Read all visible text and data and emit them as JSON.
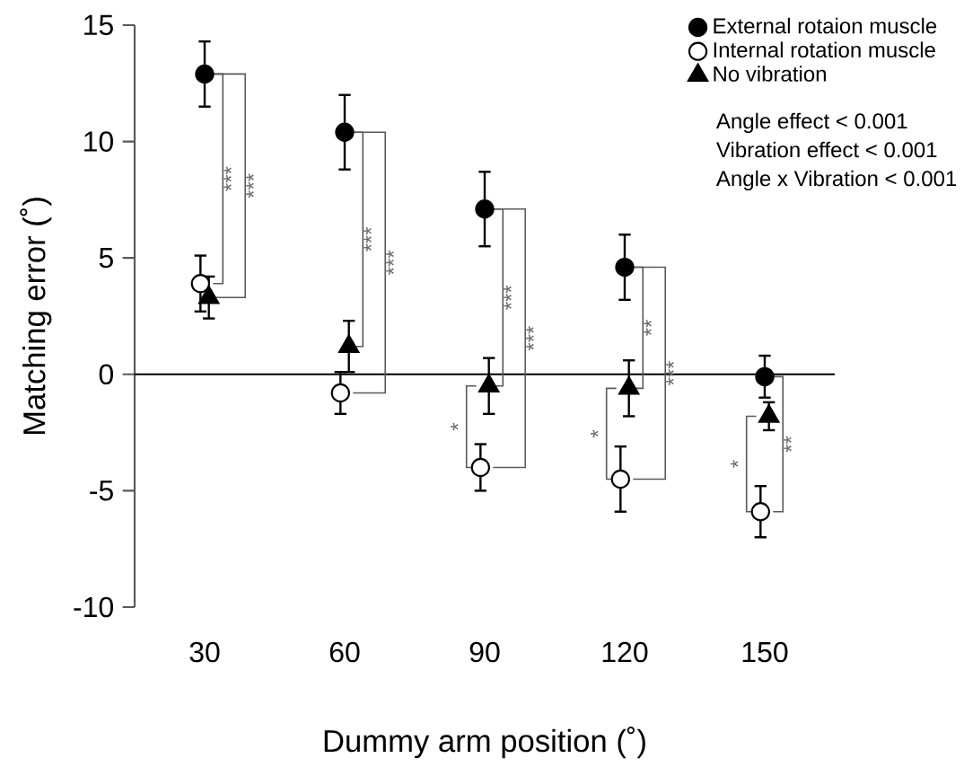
{
  "chart_data": {
    "type": "scatter",
    "xlabel": "Dummy arm position (˚)",
    "ylabel": "Matching error (˚)",
    "categories": [
      "30",
      "60",
      "90",
      "120",
      "150"
    ],
    "ylim": [
      -10,
      15
    ],
    "yticks": [
      -10,
      -5,
      0,
      5,
      10,
      15
    ],
    "legend": "top right",
    "series": [
      {
        "name": "External rotaion muscle",
        "color": "#000000",
        "marker": "circle",
        "values": [
          12.9,
          10.4,
          7.1,
          4.6,
          -0.1
        ],
        "errors": [
          1.4,
          1.6,
          1.6,
          1.4,
          0.9
        ]
      },
      {
        "name": "Internal rotation muscle",
        "color": "#ffffff",
        "marker": "circle",
        "values": [
          3.9,
          -0.8,
          -4.0,
          -4.5,
          -5.9
        ],
        "errors": [
          1.2,
          0.9,
          1.0,
          1.4,
          1.1
        ]
      },
      {
        "name": "No vibration",
        "color": "#000000",
        "marker": "triangle",
        "values": [
          3.3,
          1.2,
          -0.5,
          -0.6,
          -1.8
        ],
        "errors": [
          0.9,
          1.1,
          1.2,
          1.2,
          0.6
        ]
      }
    ],
    "ref_lines": [
      {
        "axis": "y",
        "value": 0,
        "color": "#000000"
      }
    ],
    "annotations": [
      "Angle effect < 0.001",
      "Vibration effect < 0.001",
      "Angle x Vibration < 0.001",
      "***",
      "***",
      "***",
      "***",
      "***",
      "***",
      "*",
      "**",
      "***",
      "*",
      "**",
      "*"
    ]
  }
}
